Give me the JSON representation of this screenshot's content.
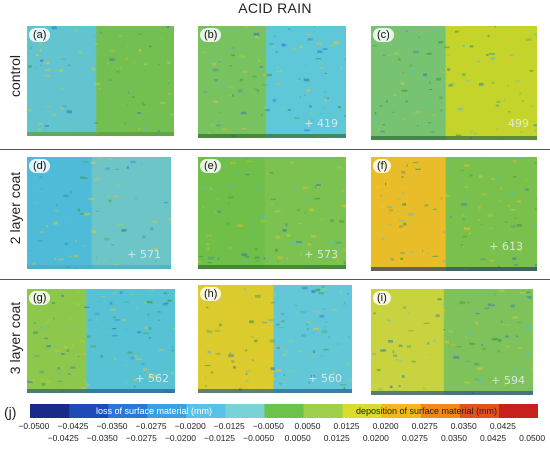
{
  "title": "ACID RAIN",
  "rows": [
    {
      "label": "control",
      "panels": [
        {
          "id": "a",
          "tag": "(a)",
          "text": "",
          "left": "#62c4cf",
          "right": "#74bf52",
          "split": 0.47,
          "edge": "#5d9d40",
          "noise": 0.3
        },
        {
          "id": "b",
          "tag": "(b)",
          "text": "+ 419",
          "left": "#79c260",
          "right": "#5fc8d8",
          "split": 0.46,
          "edge": "#346d34",
          "noise": 0.5
        },
        {
          "id": "c",
          "tag": "(c)",
          "text": "499",
          "left": "#78c372",
          "right": "#c5d42a",
          "split": 0.45,
          "edge": "#2f6d3a",
          "noise": 0.5
        }
      ]
    },
    {
      "label": "2 layer coat",
      "panels": [
        {
          "id": "d",
          "tag": "(d)",
          "text": "+ 571",
          "left": "#4ebbd8",
          "right": "#6ec5c8",
          "split": 0.45,
          "edge": "#4ea9c4",
          "noise": 0.25
        },
        {
          "id": "e",
          "tag": "(e)",
          "text": "+ 573",
          "left": "#6fbf49",
          "right": "#7cc251",
          "split": 0.45,
          "edge": "#2f7034",
          "noise": 0.35
        },
        {
          "id": "f",
          "tag": "(f)",
          "text": "+ 613",
          "left": "#e9bd2a",
          "right": "#7ac04c",
          "split": 0.45,
          "edge": "#25406f",
          "noise": 0.55
        }
      ]
    },
    {
      "label": "3 layer coat",
      "panels": [
        {
          "id": "g",
          "tag": "(g)",
          "text": "+ 562",
          "left": "#8dc74b",
          "right": "#57c2d4",
          "split": 0.4,
          "edge": "#2c5b8a",
          "noise": 0.55
        },
        {
          "id": "h",
          "tag": "(h)",
          "text": "+ 560",
          "left": "#dccb2d",
          "right": "#62c8d8",
          "split": 0.49,
          "edge": "#2e5e8d",
          "noise": 0.5
        },
        {
          "id": "i",
          "tag": "(i)",
          "text": "+ 594",
          "left": "#c8d33f",
          "right": "#7fc25c",
          "split": 0.45,
          "edge": "#2c5490",
          "noise": 0.45
        }
      ]
    }
  ],
  "colorbar": {
    "label": "(j)",
    "left_text": "loss of surface material (mm)",
    "right_text": "deposition of surface material (mm)",
    "top_ticks": [
      "−0.0500",
      "−0.0425",
      "−0.0350",
      "−0.0275",
      "−0.0200",
      "−0.0125",
      "−0.0050",
      "0.0050",
      "0.0125",
      "0.0200",
      "0.0275",
      "0.0350",
      "0.0425"
    ],
    "bottom_ticks": [
      "−0.0425",
      "−0.0350",
      "−0.0275",
      "−0.0200",
      "−0.0125",
      "−0.0050",
      "0.0050",
      "0.0125",
      "0.0200",
      "0.0275",
      "0.0350",
      "0.0425",
      "0.0500"
    ],
    "colors": [
      "#1a2a8a",
      "#1f4ab8",
      "#2a78d6",
      "#3aa0e0",
      "#58c2e6",
      "#79d2d6",
      "#6cc24a",
      "#9fd04a",
      "#d9dc2c",
      "#f2b81e",
      "#ef8a1a",
      "#e2531b",
      "#c8201c"
    ]
  }
}
